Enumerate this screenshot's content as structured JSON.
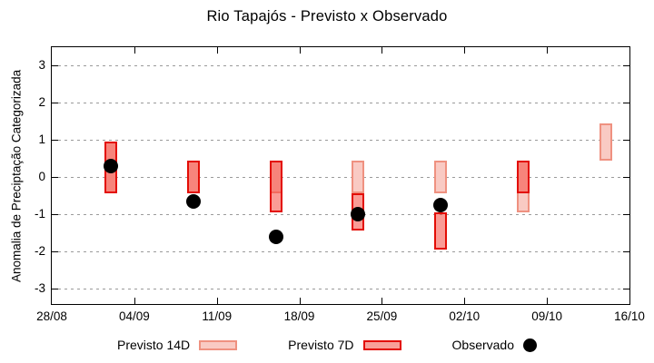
{
  "title": "Rio Tapajós - Previsto x Observado",
  "chart_data": {
    "type": "bar",
    "subtype": "categorized-range-bars-with-scatter-overlay",
    "title": "Rio Tapajós - Previsto x Observado",
    "xlabel": "",
    "ylabel": "Anomalia de Preciptação Categorizada",
    "x_tick_labels": [
      "28/08",
      "04/09",
      "11/09",
      "18/09",
      "25/09",
      "02/10",
      "09/10",
      "16/10"
    ],
    "x_tick_days": [
      0,
      7,
      14,
      21,
      28,
      35,
      42,
      49
    ],
    "y_ticks": [
      3,
      2,
      1,
      0,
      -1,
      -2,
      -3
    ],
    "ylim": [
      -3.45,
      3.5
    ],
    "xlim_days": [
      0,
      49
    ],
    "grid": "horizontal dotted gridlines at integer y ticks",
    "legend_position": "below plot, centered",
    "series": [
      {
        "name": "Previsto 14D",
        "type": "range-bar",
        "points": [
          {
            "date": "02/09",
            "day": 5,
            "low": -0.45,
            "high": 0.95
          },
          {
            "date": "09/09",
            "day": 12,
            "low": -0.45,
            "high": 0.45
          },
          {
            "date": "16/09",
            "day": 19,
            "low": -0.45,
            "high": 0.45
          },
          {
            "date": "23/09",
            "day": 26,
            "low": -0.45,
            "high": 0.45
          },
          {
            "date": "30/09",
            "day": 33,
            "low": -0.45,
            "high": 0.45
          },
          {
            "date": "07/10",
            "day": 40,
            "low": -0.95,
            "high": 0.45
          },
          {
            "date": "14/10",
            "day": 47,
            "low": 0.45,
            "high": 1.45
          }
        ]
      },
      {
        "name": "Previsto 7D",
        "type": "range-bar",
        "points": [
          {
            "date": "02/09",
            "day": 5,
            "low": -0.45,
            "high": 0.95
          },
          {
            "date": "09/09",
            "day": 12,
            "low": -0.45,
            "high": 0.45
          },
          {
            "date": "16/09",
            "day": 19,
            "low": -0.95,
            "high": 0.45
          },
          {
            "date": "23/09",
            "day": 26,
            "low": -1.45,
            "high": -0.45
          },
          {
            "date": "30/09",
            "day": 33,
            "low": -1.95,
            "high": -0.95
          },
          {
            "date": "07/10",
            "day": 40,
            "low": -0.45,
            "high": 0.45
          }
        ]
      },
      {
        "name": "Observado",
        "type": "scatter",
        "points": [
          {
            "date": "02/09",
            "day": 5,
            "value": 0.3
          },
          {
            "date": "09/09",
            "day": 12,
            "value": -0.65
          },
          {
            "date": "16/09",
            "day": 19,
            "value": -1.6
          },
          {
            "date": "23/09",
            "day": 26,
            "value": -1.0
          },
          {
            "date": "30/09",
            "day": 33,
            "value": -0.75
          }
        ]
      }
    ],
    "colors": {
      "forecast_14d_fill": "#f9cac3",
      "forecast_14d_border": "#ef9180",
      "forecast_7d_fill": "rgba(245,75,64,0.55)",
      "forecast_7d_fill_flat": "#f89f99",
      "forecast_7d_overlap_fill": "#f7847b",
      "forecast_7d_border": "#e30d05",
      "observed": "#000000",
      "grid": "#9a9a9a",
      "axis": "#000000"
    }
  },
  "legend": {
    "items": [
      {
        "label": "Previsto 14D"
      },
      {
        "label": "Previsto 7D"
      },
      {
        "label": "Observado"
      }
    ]
  }
}
